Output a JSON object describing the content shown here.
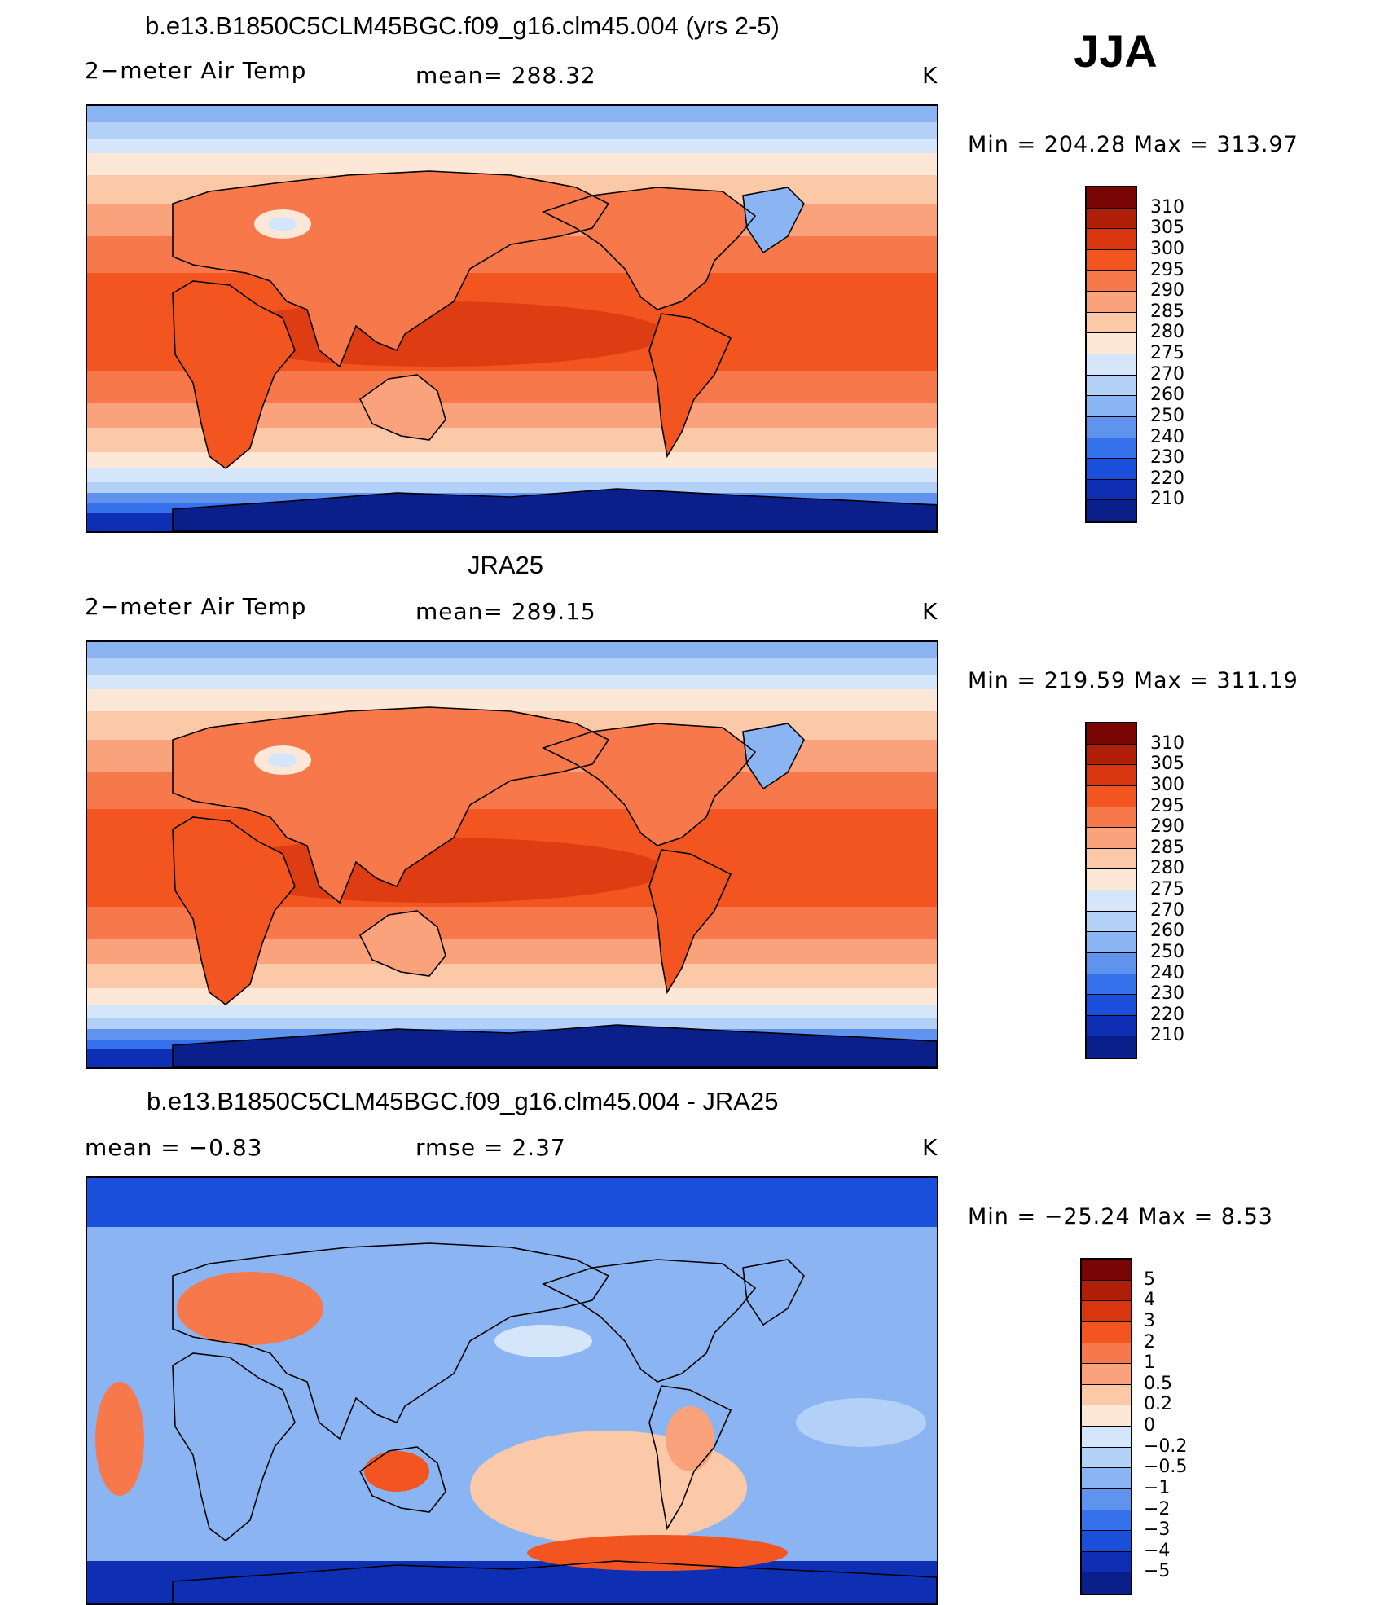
{
  "season": "JJA",
  "units": "K",
  "panels": [
    {
      "title": "b.e13.B1850C5CLM45BGC.f09_g16.clm45.004 (yrs 2-5)",
      "variable": "2−meter Air Temp",
      "stat": "mean= 288.32",
      "units": "K",
      "minmax": "Min  =  204.28  Max  =  313.97"
    },
    {
      "title": "JRA25",
      "variable": "2−meter Air Temp",
      "stat": "mean= 289.15",
      "units": "K",
      "minmax": "Min  =  219.59  Max  =  311.19"
    },
    {
      "title": "b.e13.B1850C5CLM45BGC.f09_g16.clm45.004 - JRA25",
      "stat_left": "mean  =    −0.83",
      "stat_mid": "rmse  =     2.37",
      "units": "K",
      "minmax": "Min  =  −25.24  Max  =     8.53"
    }
  ],
  "chart_data": [
    {
      "type": "heatmap",
      "title": "b.e13.B1850C5CLM45BGC.f09_g16.clm45.004 (yrs 2-5)",
      "variable": "2-meter Air Temp",
      "mean": 288.32,
      "min": 204.28,
      "max": 313.97,
      "units": "K",
      "colorbar_levels": [
        "310",
        "305",
        "300",
        "295",
        "290",
        "285",
        "280",
        "275",
        "270",
        "260",
        "250",
        "240",
        "230",
        "220",
        "210"
      ]
    },
    {
      "type": "heatmap",
      "title": "JRA25",
      "variable": "2-meter Air Temp",
      "mean": 289.15,
      "min": 219.59,
      "max": 311.19,
      "units": "K",
      "colorbar_levels": [
        "310",
        "305",
        "300",
        "295",
        "290",
        "285",
        "280",
        "275",
        "270",
        "260",
        "250",
        "240",
        "230",
        "220",
        "210"
      ]
    },
    {
      "type": "heatmap",
      "title": "b.e13.B1850C5CLM45BGC.f09_g16.clm45.004 - JRA25",
      "mean": -0.83,
      "rmse": 2.37,
      "min": -25.24,
      "max": 8.53,
      "units": "K",
      "colorbar_levels": [
        "5",
        "4",
        "3",
        "2",
        "1",
        "0.5",
        "0.2",
        "0",
        "−0.2",
        "−0.5",
        "−1",
        "−2",
        "−3",
        "−4",
        "−5"
      ]
    }
  ],
  "colors": {
    "temp_scale": [
      "#7a0505",
      "#b01e0a",
      "#d8360f",
      "#f25520",
      "#f7784a",
      "#f9a27c",
      "#fbc8a8",
      "#fde8d8",
      "#d6e6fa",
      "#b3d0f7",
      "#8bb5f2",
      "#5f93ee",
      "#3671ec",
      "#1a4fdc",
      "#0e2fb4",
      "#0a1f8a"
    ],
    "diff_scale": [
      "#7a0505",
      "#b01e0a",
      "#d8360f",
      "#f25520",
      "#f7784a",
      "#f9a27c",
      "#fbc8a8",
      "#fde8d8",
      "#d6e6fa",
      "#b3d0f7",
      "#8bb5f2",
      "#5f93ee",
      "#3671ec",
      "#1a4fdc",
      "#0e2fb4",
      "#0a1f8a"
    ]
  }
}
